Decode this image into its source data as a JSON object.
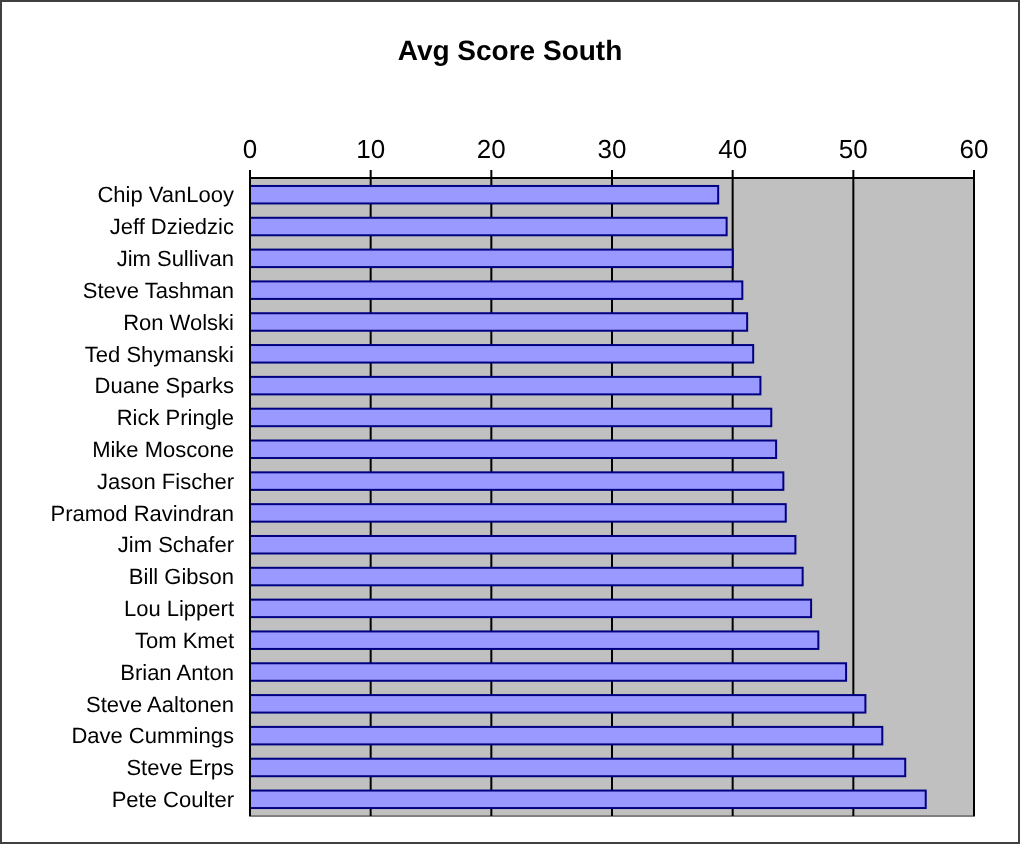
{
  "chart_data": {
    "type": "bar",
    "orientation": "horizontal",
    "title": "Avg Score South",
    "categories": [
      "Chip VanLooy",
      "Jeff Dziedzic",
      "Jim Sullivan",
      "Steve Tashman",
      "Ron Wolski",
      "Ted Shymanski",
      "Duane Sparks",
      "Rick Pringle",
      "Mike Moscone",
      "Jason Fischer",
      "Pramod Ravindran",
      "Jim Schafer",
      "Bill Gibson",
      "Lou Lippert",
      "Tom Kmet",
      "Brian Anton",
      "Steve Aaltonen",
      "Dave Cummings",
      "Steve Erps",
      "Pete Coulter"
    ],
    "values": [
      38.8,
      39.5,
      40.0,
      40.8,
      41.2,
      41.7,
      42.3,
      43.2,
      43.6,
      44.2,
      44.4,
      45.2,
      45.8,
      46.5,
      47.1,
      49.4,
      51.0,
      52.4,
      54.3,
      56.0
    ],
    "color": "#9999ff",
    "xlim": [
      0,
      60
    ],
    "xticks": [
      0,
      10,
      20,
      30,
      40,
      50,
      60
    ],
    "grid": "x"
  }
}
